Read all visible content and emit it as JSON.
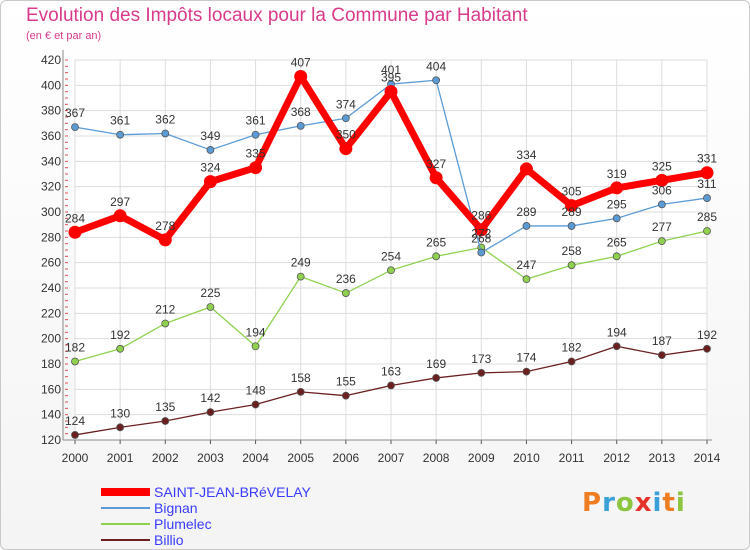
{
  "title": "Evolution des Impôts locaux pour la Commune par Habitant",
  "subtitle": "(en € et par an)",
  "logo": "Proxiti",
  "chart_data": {
    "type": "line",
    "title": "Evolution des Impôts locaux pour la Commune par Habitant",
    "subtitle": "(en € et par an)",
    "x": [
      "2000",
      "2001",
      "2002",
      "2003",
      "2004",
      "2005",
      "2006",
      "2007",
      "2008",
      "2009",
      "2010",
      "2011",
      "2012",
      "2013",
      "2014"
    ],
    "ylim": [
      120,
      420
    ],
    "yticks": [
      120,
      140,
      160,
      180,
      200,
      220,
      240,
      260,
      280,
      300,
      320,
      340,
      360,
      380,
      400,
      420
    ],
    "grid": true,
    "legend_position": "bottom-left",
    "series": [
      {
        "name": "SAINT-JEAN-BRéVELAY",
        "color": "#ff0000",
        "values": [
          284,
          297,
          278,
          324,
          335,
          407,
          350,
          395,
          327,
          286,
          334,
          305,
          319,
          325,
          331
        ]
      },
      {
        "name": "Bignan",
        "color": "#5b9bd5",
        "values": [
          367,
          361,
          362,
          349,
          361,
          368,
          374,
          401,
          404,
          268,
          289,
          289,
          295,
          306,
          311
        ]
      },
      {
        "name": "Plumelec",
        "color": "#8fd14f",
        "values": [
          182,
          192,
          212,
          225,
          194,
          249,
          236,
          254,
          265,
          272,
          247,
          258,
          265,
          277,
          285
        ]
      },
      {
        "name": "Billio",
        "color": "#6b1f1f",
        "values": [
          124,
          130,
          135,
          142,
          148,
          158,
          155,
          163,
          169,
          173,
          174,
          182,
          194,
          187,
          192
        ]
      }
    ]
  }
}
